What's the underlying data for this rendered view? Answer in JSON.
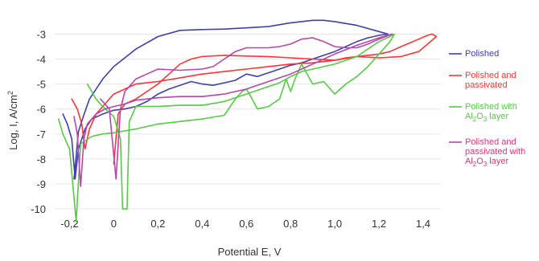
{
  "chart_data": {
    "type": "line",
    "xlabel": "Potential E, V",
    "ylabel": "Log, I, A/cm",
    "ylabel_sup": "2",
    "xlim": [
      -0.26,
      1.48
    ],
    "ylim": [
      -10.8,
      -2.6
    ],
    "grid": "horizontal",
    "legend_position": "right",
    "x_ticks": [
      {
        "value": -0.2,
        "label": "-0,2"
      },
      {
        "value": 0,
        "label": "0"
      },
      {
        "value": 0.2,
        "label": "0,2"
      },
      {
        "value": 0.4,
        "label": "0,4"
      },
      {
        "value": 0.6,
        "label": "0,6"
      },
      {
        "value": 0.8,
        "label": "0,8"
      },
      {
        "value": 1.0,
        "label": "1,0"
      },
      {
        "value": 1.2,
        "label": "1,2"
      },
      {
        "value": 1.4,
        "label": "1,4"
      }
    ],
    "y_ticks": [
      {
        "value": -3,
        "label": "-3"
      },
      {
        "value": -4,
        "label": "-4"
      },
      {
        "value": -5,
        "label": "-5"
      },
      {
        "value": -6,
        "label": "-6"
      },
      {
        "value": -7,
        "label": "-7"
      },
      {
        "value": -8,
        "label": "-8"
      },
      {
        "value": -9,
        "label": "-9"
      },
      {
        "value": -10,
        "label": "-10"
      }
    ],
    "series": [
      {
        "name": "Polished",
        "legend_lines": [
          {
            "text": "Polished"
          }
        ],
        "color": "#3f3fb0",
        "segments": [
          [
            [
              -0.23,
              -6.2
            ],
            [
              -0.21,
              -6.6
            ],
            [
              -0.19,
              -7.2
            ],
            [
              -0.175,
              -8.8
            ],
            [
              -0.16,
              -7.6
            ],
            [
              -0.13,
              -6.8
            ],
            [
              -0.1,
              -6.4
            ],
            [
              -0.05,
              -6.2
            ],
            [
              0,
              -6.05
            ],
            [
              0.05,
              -6.0
            ],
            [
              0.1,
              -5.9
            ],
            [
              0.15,
              -5.7
            ],
            [
              0.2,
              -5.4
            ],
            [
              0.25,
              -5.2
            ],
            [
              0.3,
              -5.05
            ],
            [
              0.35,
              -4.9
            ],
            [
              0.4,
              -5.0
            ],
            [
              0.45,
              -5.05
            ],
            [
              0.5,
              -4.95
            ],
            [
              0.55,
              -4.85
            ],
            [
              0.6,
              -4.6
            ],
            [
              0.65,
              -4.7
            ],
            [
              0.7,
              -4.55
            ],
            [
              0.75,
              -4.4
            ],
            [
              0.8,
              -4.25
            ],
            [
              0.85,
              -4.15
            ],
            [
              0.9,
              -4.0
            ],
            [
              0.95,
              -3.85
            ],
            [
              1.0,
              -3.7
            ],
            [
              1.05,
              -3.5
            ],
            [
              1.1,
              -3.3
            ],
            [
              1.15,
              -3.15
            ],
            [
              1.2,
              -3.05
            ],
            [
              1.24,
              -3.0
            ],
            [
              1.2,
              -2.9
            ],
            [
              1.1,
              -2.65
            ],
            [
              1.0,
              -2.5
            ],
            [
              0.95,
              -2.45
            ],
            [
              0.9,
              -2.45
            ],
            [
              0.85,
              -2.5
            ],
            [
              0.8,
              -2.55
            ],
            [
              0.7,
              -2.7
            ],
            [
              0.6,
              -2.75
            ],
            [
              0.5,
              -2.8
            ],
            [
              0.4,
              -2.82
            ],
            [
              0.3,
              -2.85
            ],
            [
              0.2,
              -3.1
            ],
            [
              0.1,
              -3.6
            ],
            [
              0.05,
              -3.95
            ],
            [
              0,
              -4.3
            ],
            [
              -0.05,
              -4.8
            ],
            [
              -0.08,
              -5.2
            ],
            [
              -0.11,
              -5.6
            ],
            [
              -0.13,
              -6.1
            ],
            [
              -0.16,
              -6.9
            ],
            [
              -0.18,
              -8.8
            ]
          ]
        ]
      },
      {
        "name": "Polished and passivated",
        "legend_lines": [
          {
            "text": "Polished and"
          },
          {
            "text": "passivated"
          }
        ],
        "color": "#ff3333",
        "segments": [
          [
            [
              -0.19,
              -5.6
            ],
            [
              -0.165,
              -6.0
            ],
            [
              -0.145,
              -6.6
            ],
            [
              -0.13,
              -7.6
            ],
            [
              -0.11,
              -6.8
            ],
            [
              -0.08,
              -6.2
            ],
            [
              -0.05,
              -5.9
            ],
            [
              0,
              -5.4
            ],
            [
              0.05,
              -5.2
            ],
            [
              0.1,
              -5.0
            ],
            [
              0.2,
              -4.9
            ],
            [
              0.3,
              -4.75
            ],
            [
              0.4,
              -4.6
            ],
            [
              0.5,
              -4.5
            ],
            [
              0.6,
              -4.4
            ],
            [
              0.7,
              -4.3
            ],
            [
              0.8,
              -4.2
            ],
            [
              0.9,
              -4.15
            ],
            [
              1.0,
              -4.05
            ],
            [
              1.1,
              -3.9
            ],
            [
              1.2,
              -3.8
            ],
            [
              1.25,
              -3.7
            ],
            [
              1.3,
              -3.5
            ],
            [
              1.38,
              -3.2
            ],
            [
              1.42,
              -3.05
            ],
            [
              1.44,
              -3.0
            ],
            [
              1.46,
              -3.1
            ],
            [
              1.42,
              -3.4
            ],
            [
              1.38,
              -3.7
            ],
            [
              1.3,
              -3.9
            ],
            [
              1.2,
              -3.95
            ],
            [
              1.1,
              -3.9
            ],
            [
              1.05,
              -3.95
            ],
            [
              1.0,
              -4.05
            ],
            [
              0.9,
              -4.0
            ],
            [
              0.8,
              -3.95
            ],
            [
              0.7,
              -3.9
            ],
            [
              0.6,
              -3.88
            ],
            [
              0.5,
              -3.85
            ],
            [
              0.4,
              -3.9
            ],
            [
              0.35,
              -4.0
            ],
            [
              0.3,
              -4.2
            ],
            [
              0.25,
              -4.6
            ],
            [
              0.2,
              -5.0
            ],
            [
              0.15,
              -5.3
            ],
            [
              0.1,
              -5.6
            ],
            [
              0.05,
              -5.8
            ],
            [
              0.02,
              -6.2
            ],
            [
              0.0,
              -8.2
            ]
          ]
        ]
      },
      {
        "name": "Polished with Al2O3 layer",
        "legend_lines": [
          {
            "text": "Polished with"
          },
          {
            "text": "Al",
            "sub": "2",
            "text2": "O",
            "sub2": "3",
            "text3": " layer"
          }
        ],
        "color": "#55cc44",
        "segments": [
          [
            [
              -0.25,
              -6.4
            ],
            [
              -0.23,
              -7.0
            ],
            [
              -0.2,
              -7.6
            ],
            [
              -0.17,
              -10.5
            ],
            [
              -0.15,
              -7.4
            ],
            [
              -0.1,
              -7.1
            ],
            [
              -0.05,
              -7.0
            ],
            [
              0,
              -6.95
            ],
            [
              0.1,
              -6.8
            ],
            [
              0.2,
              -6.6
            ],
            [
              0.3,
              -6.5
            ],
            [
              0.4,
              -6.4
            ],
            [
              0.5,
              -6.25
            ],
            [
              0.55,
              -5.6
            ],
            [
              0.58,
              -5.3
            ],
            [
              0.6,
              -5.2
            ],
            [
              0.62,
              -5.5
            ],
            [
              0.65,
              -6.0
            ],
            [
              0.7,
              -5.9
            ],
            [
              0.75,
              -5.6
            ],
            [
              0.78,
              -4.8
            ],
            [
              0.8,
              -5.3
            ],
            [
              0.82,
              -4.8
            ],
            [
              0.85,
              -4.2
            ],
            [
              0.9,
              -5.0
            ],
            [
              0.95,
              -4.9
            ],
            [
              1.0,
              -5.4
            ],
            [
              1.05,
              -5.0
            ],
            [
              1.1,
              -4.7
            ],
            [
              1.15,
              -4.3
            ],
            [
              1.2,
              -3.8
            ],
            [
              1.25,
              -3.3
            ],
            [
              1.27,
              -3.0
            ],
            [
              1.25,
              -3.1
            ],
            [
              1.2,
              -3.3
            ],
            [
              1.15,
              -3.6
            ],
            [
              1.1,
              -3.9
            ],
            [
              1.05,
              -4.05
            ],
            [
              1.0,
              -4.2
            ],
            [
              0.95,
              -4.3
            ],
            [
              0.9,
              -4.4
            ],
            [
              0.85,
              -4.5
            ],
            [
              0.8,
              -4.7
            ],
            [
              0.75,
              -4.95
            ],
            [
              0.7,
              -5.1
            ],
            [
              0.6,
              -5.4
            ],
            [
              0.5,
              -5.7
            ],
            [
              0.4,
              -5.85
            ],
            [
              0.3,
              -5.85
            ],
            [
              0.2,
              -5.9
            ],
            [
              0.1,
              -5.9
            ],
            [
              0.07,
              -6.5
            ],
            [
              0.06,
              -10.0
            ],
            [
              0.04,
              -10.0
            ],
            [
              0.03,
              -7.2
            ],
            [
              0.0,
              -6.3
            ],
            [
              -0.05,
              -5.9
            ],
            [
              -0.08,
              -5.6
            ],
            [
              -0.1,
              -5.3
            ],
            [
              -0.12,
              -5.0
            ]
          ]
        ]
      },
      {
        "name": "Polished and passivated with Al2O3 layer",
        "legend_lines": [
          {
            "text": "Polished and"
          },
          {
            "text": "passivated with"
          },
          {
            "text": "Al",
            "sub": "2",
            "text2": "O",
            "sub2": "3",
            "text3": " layer"
          }
        ],
        "color": "#bb44aa",
        "legend_color": "#ee3377",
        "segments": [
          [
            [
              -0.18,
              -6.3
            ],
            [
              -0.165,
              -7.0
            ],
            [
              -0.15,
              -9.1
            ],
            [
              -0.135,
              -7.2
            ],
            [
              -0.12,
              -6.6
            ],
            [
              -0.08,
              -6.2
            ],
            [
              -0.04,
              -6.0
            ],
            [
              0,
              -5.9
            ],
            [
              0.05,
              -5.8
            ],
            [
              0.1,
              -5.65
            ],
            [
              0.2,
              -5.55
            ],
            [
              0.3,
              -5.5
            ],
            [
              0.4,
              -5.5
            ],
            [
              0.5,
              -5.4
            ],
            [
              0.6,
              -5.2
            ],
            [
              0.7,
              -4.9
            ],
            [
              0.8,
              -4.6
            ],
            [
              0.9,
              -4.2
            ],
            [
              1.0,
              -3.8
            ],
            [
              1.1,
              -3.45
            ],
            [
              1.2,
              -3.15
            ],
            [
              1.26,
              -3.0
            ],
            [
              1.2,
              -3.2
            ],
            [
              1.15,
              -3.4
            ],
            [
              1.1,
              -3.55
            ],
            [
              1.05,
              -3.55
            ],
            [
              1.0,
              -3.5
            ],
            [
              0.95,
              -3.3
            ],
            [
              0.9,
              -3.15
            ],
            [
              0.85,
              -3.2
            ],
            [
              0.8,
              -3.4
            ],
            [
              0.75,
              -3.5
            ],
            [
              0.7,
              -3.55
            ],
            [
              0.6,
              -3.55
            ],
            [
              0.55,
              -3.7
            ],
            [
              0.5,
              -4.0
            ],
            [
              0.45,
              -4.3
            ],
            [
              0.4,
              -4.4
            ],
            [
              0.3,
              -4.45
            ],
            [
              0.2,
              -4.4
            ],
            [
              0.15,
              -4.6
            ],
            [
              0.1,
              -4.8
            ],
            [
              0.05,
              -5.3
            ],
            [
              0.03,
              -6.0
            ],
            [
              0.01,
              -8.8
            ],
            [
              -0.02,
              -6.0
            ],
            [
              -0.06,
              -5.6
            ]
          ]
        ]
      }
    ]
  }
}
